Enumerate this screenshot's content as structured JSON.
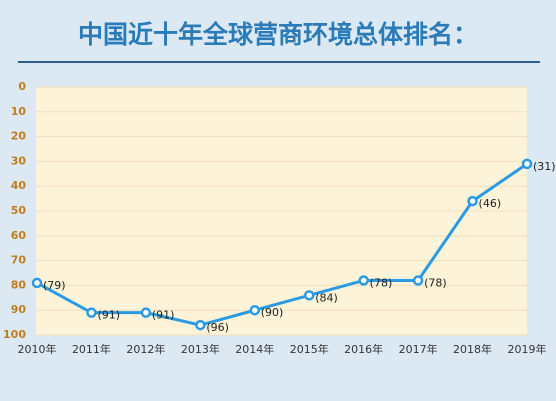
{
  "chart_data": {
    "type": "line",
    "title": "中国近十年全球营商环境总体排名：",
    "categories": [
      "2010年",
      "2011年",
      "2012年",
      "2013年",
      "2014年",
      "2015年",
      "2016年",
      "2017年",
      "2018年",
      "2019年"
    ],
    "values": [
      79,
      91,
      91,
      96,
      90,
      84,
      78,
      78,
      46,
      31
    ],
    "value_labels": [
      "(79)",
      "(91)",
      "(91)",
      "(96)",
      "(90)",
      "(84)",
      "(78)",
      "(78)",
      "(46)",
      "(31)"
    ],
    "color": "#2a9be3",
    "ylim": [
      100,
      0
    ],
    "yticks": [
      0,
      10,
      20,
      30,
      40,
      50,
      60,
      70,
      80,
      90,
      100
    ],
    "grid": true
  }
}
